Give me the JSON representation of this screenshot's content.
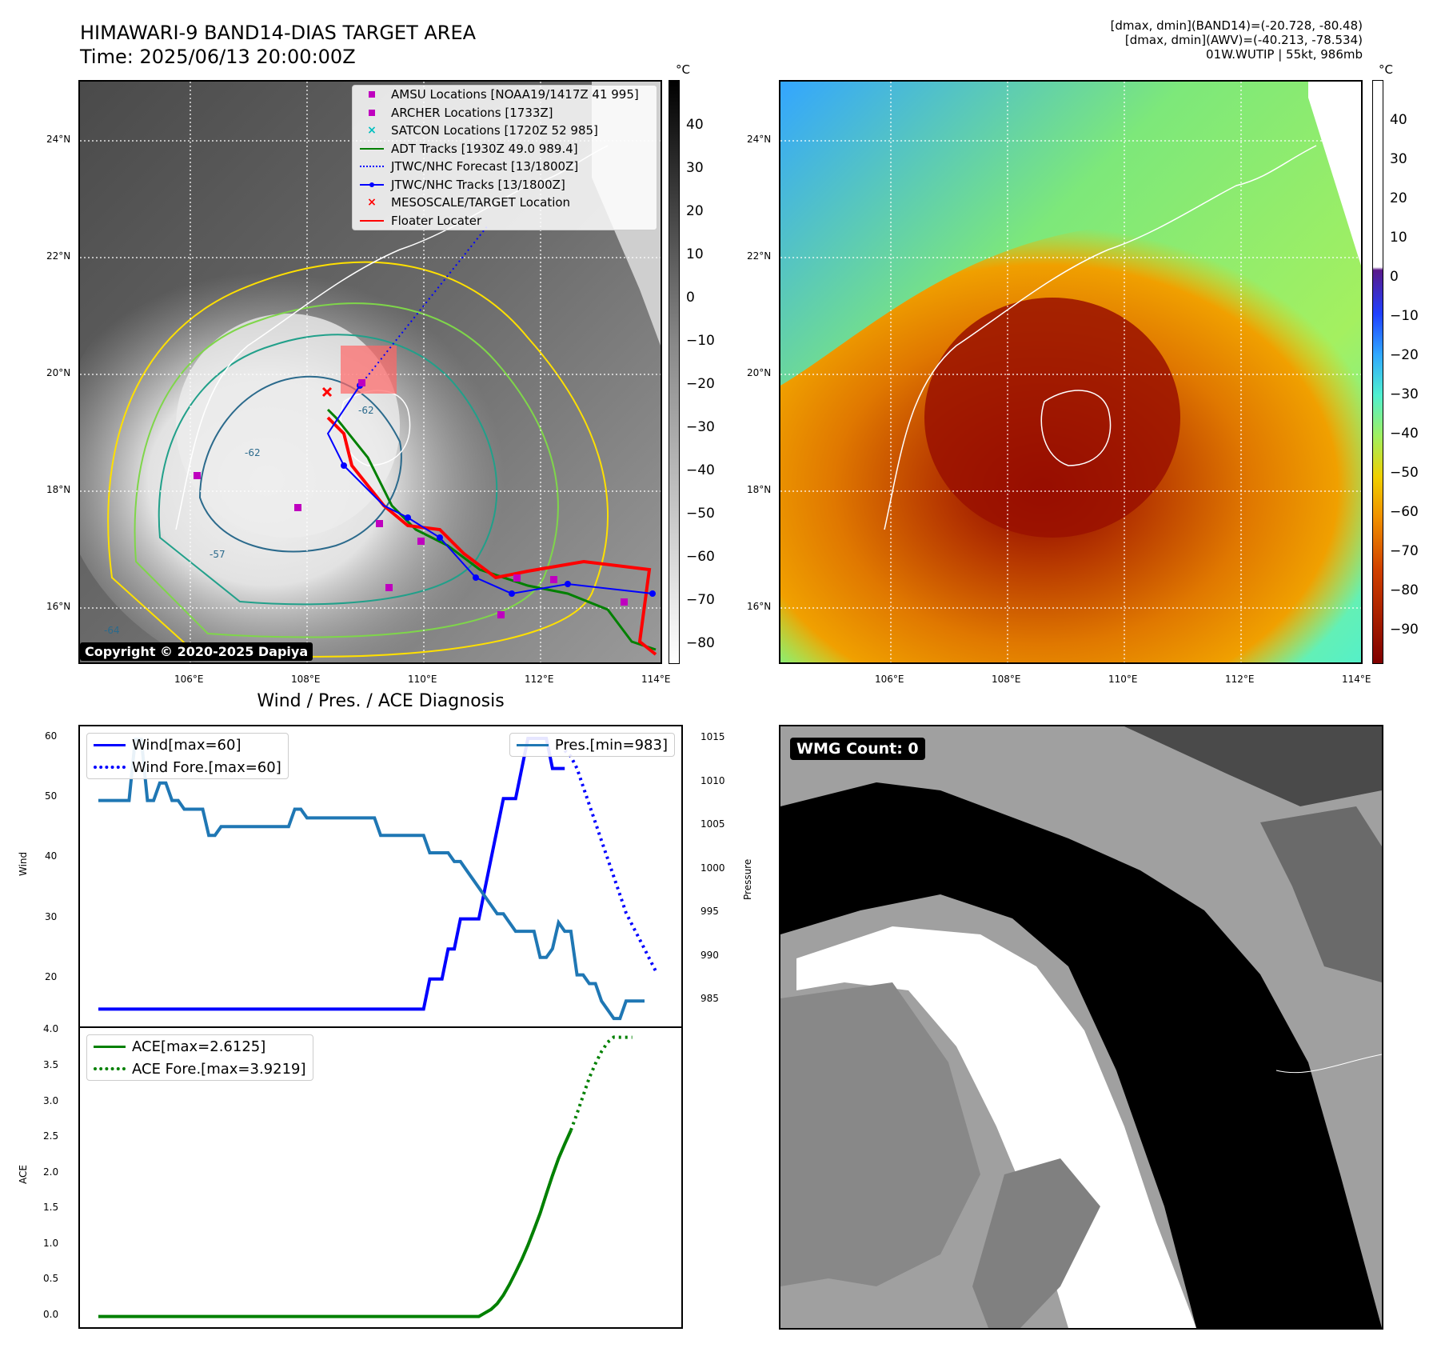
{
  "header": {
    "title_line1": "HIMAWARI-9 BAND14-DIAS TARGET AREA",
    "title_line2": "Time: 2025/06/13 20:00:00Z",
    "info_line1": "[dmax, dmin](BAND14)=(-20.728, -80.48)",
    "info_line2": "[dmax, dmin](AWV)=(-40.213, -78.534)",
    "info_line3": "01W.WUTIP | 55kt, 986mb"
  },
  "map_left": {
    "unit": "°C",
    "colorbar_ticks": [
      "40",
      "30",
      "20",
      "10",
      "0",
      "−10",
      "−20",
      "−30",
      "−40",
      "−50",
      "−60",
      "−70",
      "−80"
    ],
    "lat_labels": [
      "24°N",
      "22°N",
      "20°N",
      "18°N",
      "16°N"
    ],
    "lon_labels": [
      "106°E",
      "108°E",
      "110°E",
      "112°E",
      "114°E"
    ],
    "copyright": "Copyright © 2020-2025 Dapiya",
    "contour_labels": [
      "-62",
      "-57",
      "-62",
      "-64"
    ],
    "legend": [
      {
        "label": "AMSU Locations [NOAA19/1417Z 41 995]",
        "symbol": "square",
        "color": "#bf00bf"
      },
      {
        "label": "ARCHER Locations [1733Z]",
        "symbol": "square",
        "color": "#bf00bf"
      },
      {
        "label": "SATCON Locations [1720Z 52 985]",
        "symbol": "x",
        "color": "#00bfbf"
      },
      {
        "label": "ADT Tracks [1930Z 49.0 989.4]",
        "symbol": "line",
        "color": "#008000"
      },
      {
        "label": "JTWC/NHC Forecast [13/1800Z]",
        "symbol": "dotted",
        "color": "#0000ff"
      },
      {
        "label": "JTWC/NHC Tracks [13/1800Z]",
        "symbol": "line-dot",
        "color": "#0000ff"
      },
      {
        "label": "MESOSCALE/TARGET Location",
        "symbol": "x",
        "color": "#ff0000"
      },
      {
        "label": "Floater Locater",
        "symbol": "line",
        "color": "#ff0000"
      }
    ]
  },
  "map_right": {
    "unit": "°C",
    "colorbar_ticks": [
      "40",
      "30",
      "20",
      "10",
      "0",
      "−10",
      "−20",
      "−30",
      "−40",
      "−50",
      "−60",
      "−70",
      "−80",
      "−90"
    ],
    "lat_labels": [
      "24°N",
      "22°N",
      "20°N",
      "18°N",
      "16°N"
    ],
    "lon_labels": [
      "106°E",
      "108°E",
      "110°E",
      "112°E",
      "114°E"
    ]
  },
  "diag_title": "Wind / Pres. / ACE Diagnosis",
  "wmg_label": "WMG Count: 0",
  "colors": {
    "wind": "#0000ff",
    "pres": "#1f77b4",
    "ace": "#008000"
  },
  "chart_data": [
    {
      "type": "line",
      "title": "Wind / Pres. / ACE Diagnosis",
      "ylabel": "Wind",
      "ylabel_right": "Pressure",
      "ylim": [
        12,
        62
      ],
      "ylim_right": [
        982,
        1016.5
      ],
      "yticks": [
        "20",
        "30",
        "40",
        "50",
        "60"
      ],
      "yticks_right": [
        "985",
        "990",
        "995",
        "1000",
        "1005",
        "1010",
        "1015"
      ],
      "legend_left": [
        "Wind[max=60]",
        "Wind Fore.[max=60]"
      ],
      "legend_right": [
        "Pres.[min=983]"
      ],
      "series": [
        {
          "name": "Wind[max=60]",
          "axis": "left",
          "style": "solid",
          "values": [
            15,
            15,
            15,
            15,
            15,
            15,
            15,
            15,
            15,
            15,
            15,
            15,
            15,
            15,
            15,
            15,
            15,
            15,
            15,
            15,
            15,
            15,
            15,
            15,
            15,
            15,
            15,
            15,
            15,
            15,
            15,
            15,
            15,
            15,
            15,
            15,
            15,
            15,
            15,
            15,
            15,
            15,
            15,
            15,
            15,
            15,
            15,
            15,
            15,
            15,
            15,
            15,
            15,
            15,
            20,
            20,
            20,
            25,
            25,
            30,
            30,
            30,
            30,
            35,
            40,
            45,
            50,
            50,
            50,
            55,
            60,
            60,
            60,
            60,
            55,
            55,
            55
          ]
        },
        {
          "name": "Wind Fore.[max=60]",
          "axis": "left",
          "style": "dotted",
          "x_start": 76,
          "values": [
            58,
            57,
            55,
            52,
            49,
            46,
            43,
            40,
            37,
            34,
            31,
            29,
            27,
            25,
            23,
            21
          ]
        },
        {
          "name": "Pres.[min=983]",
          "axis": "right",
          "style": "solid",
          "values": [
            1008,
            1008,
            1008,
            1008,
            1008,
            1008,
            1015,
            1015,
            1008,
            1008,
            1010,
            1010,
            1008,
            1008,
            1007,
            1007,
            1007,
            1007,
            1004,
            1004,
            1005,
            1005,
            1005,
            1005,
            1005,
            1005,
            1005,
            1005,
            1005,
            1005,
            1005,
            1005,
            1007,
            1007,
            1006,
            1006,
            1006,
            1006,
            1006,
            1006,
            1006,
            1006,
            1006,
            1006,
            1006,
            1006,
            1004,
            1004,
            1004,
            1004,
            1004,
            1004,
            1004,
            1004,
            1002,
            1002,
            1002,
            1002,
            1001,
            1001,
            1000,
            999,
            998,
            997,
            996,
            995,
            995,
            994,
            993,
            993,
            993,
            993,
            990,
            990,
            991,
            994,
            993,
            993,
            988,
            988,
            987,
            987,
            985,
            984,
            983,
            983,
            985,
            985,
            985,
            985
          ]
        }
      ]
    },
    {
      "type": "line",
      "ylabel": "ACE",
      "ylim": [
        -0.15,
        4.05
      ],
      "yticks": [
        "0.0",
        "0.5",
        "1.0",
        "1.5",
        "2.0",
        "2.5",
        "3.0",
        "3.5",
        "4.0"
      ],
      "legend": [
        "ACE[max=2.6125]",
        "ACE Fore.[max=3.9219]"
      ],
      "series": [
        {
          "name": "ACE[max=2.6125]",
          "style": "solid",
          "values": [
            0,
            0,
            0,
            0,
            0,
            0,
            0,
            0,
            0,
            0,
            0,
            0,
            0,
            0,
            0,
            0,
            0,
            0,
            0,
            0,
            0,
            0,
            0,
            0,
            0,
            0,
            0,
            0,
            0,
            0,
            0,
            0,
            0,
            0,
            0,
            0,
            0,
            0,
            0,
            0,
            0,
            0,
            0,
            0,
            0,
            0,
            0,
            0,
            0,
            0,
            0,
            0,
            0,
            0,
            0,
            0,
            0,
            0,
            0,
            0,
            0,
            0,
            0,
            0.05,
            0.1,
            0.18,
            0.3,
            0.45,
            0.62,
            0.8,
            1.0,
            1.22,
            1.45,
            1.72,
            1.98,
            2.22,
            2.42,
            2.6125
          ]
        },
        {
          "name": "ACE Fore.[max=3.9219]",
          "style": "dotted",
          "x_start": 77,
          "values": [
            2.6125,
            2.85,
            3.1,
            3.35,
            3.55,
            3.72,
            3.85,
            3.9219,
            3.92,
            3.92,
            3.92
          ]
        }
      ]
    }
  ]
}
